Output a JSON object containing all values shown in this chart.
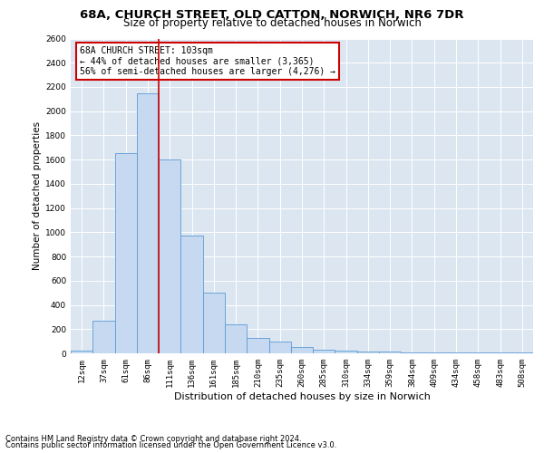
{
  "title": "68A, CHURCH STREET, OLD CATTON, NORWICH, NR6 7DR",
  "subtitle": "Size of property relative to detached houses in Norwich",
  "xlabel": "Distribution of detached houses by size in Norwich",
  "ylabel": "Number of detached properties",
  "annotation_line1": "68A CHURCH STREET: 103sqm",
  "annotation_line2": "← 44% of detached houses are smaller (3,365)",
  "annotation_line3": "56% of semi-detached houses are larger (4,276) →",
  "footer1": "Contains HM Land Registry data © Crown copyright and database right 2024.",
  "footer2": "Contains public sector information licensed under the Open Government Licence v3.0.",
  "bin_labels": [
    "12sqm",
    "37sqm",
    "61sqm",
    "86sqm",
    "111sqm",
    "136sqm",
    "161sqm",
    "185sqm",
    "210sqm",
    "235sqm",
    "260sqm",
    "285sqm",
    "310sqm",
    "334sqm",
    "359sqm",
    "384sqm",
    "409sqm",
    "434sqm",
    "458sqm",
    "483sqm",
    "508sqm"
  ],
  "bar_values": [
    25,
    270,
    1650,
    2150,
    1600,
    970,
    500,
    240,
    125,
    100,
    50,
    30,
    20,
    15,
    12,
    10,
    8,
    8,
    5,
    8,
    5
  ],
  "bar_color": "#c6d9f0",
  "bar_edge_color": "#5b9bd5",
  "vline_color": "#cc0000",
  "vline_bin_index": 4,
  "background_color": "#dce6f1",
  "ylim": [
    0,
    2600
  ],
  "yticks": [
    0,
    200,
    400,
    600,
    800,
    1000,
    1200,
    1400,
    1600,
    1800,
    2000,
    2200,
    2400,
    2600
  ],
  "title_fontsize": 9.5,
  "subtitle_fontsize": 8.5,
  "xlabel_fontsize": 8,
  "ylabel_fontsize": 7.5,
  "tick_fontsize": 6.5,
  "annot_fontsize": 7
}
